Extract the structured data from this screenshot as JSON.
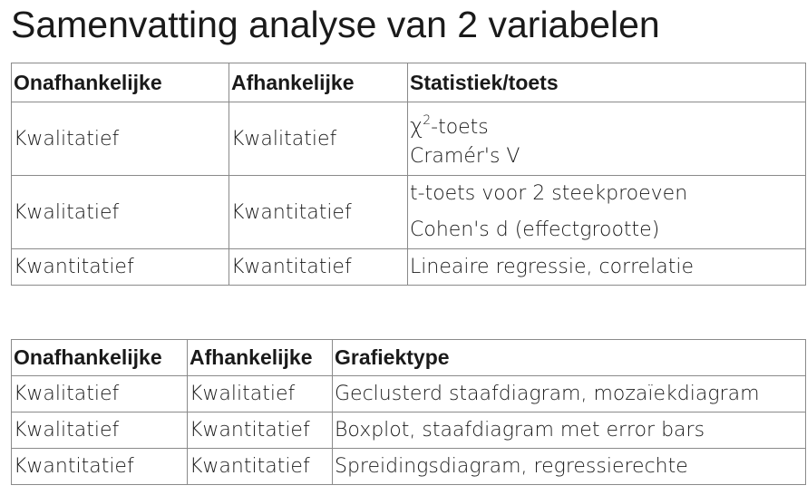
{
  "page_title": "Samenvatting analyse van 2 variabelen",
  "table1": {
    "headers": [
      "Onafhankelijke",
      "Afhankelijke",
      "Statistiek/toets"
    ],
    "rows": [
      {
        "onafhankelijke": "Kwalitatief",
        "afhankelijke": "Kwalitatief",
        "statistiek": {
          "chi_symbol": "χ",
          "chi_superscript": "2",
          "chi_suffix": "-toets",
          "line2": "Cramér's V"
        }
      },
      {
        "onafhankelijke": "Kwalitatief",
        "afhankelijke": "Kwantitatief",
        "statistiek": {
          "line1": "t-toets voor 2 steekproeven",
          "line2": "Cohen's d (effectgrootte)"
        }
      },
      {
        "onafhankelijke": "Kwantitatief",
        "afhankelijke": "Kwantitatief",
        "statistiek": {
          "line1": "Lineaire regressie, correlatie"
        }
      }
    ]
  },
  "table2": {
    "headers": [
      "Onafhankelijke",
      "Afhankelijke",
      "Grafiektype"
    ],
    "rows": [
      {
        "onafhankelijke": "Kwalitatief",
        "afhankelijke": "Kwalitatief",
        "grafiektype": "Geclusterd staafdiagram, mozaïekdiagram"
      },
      {
        "onafhankelijke": "Kwalitatief",
        "afhankelijke": "Kwantitatief",
        "grafiektype": "Boxplot, staafdiagram met error bars"
      },
      {
        "onafhankelijke": "Kwantitatief",
        "afhankelijke": "Kwantitatief",
        "grafiektype": "Spreidingsdiagram, regressierechte"
      }
    ]
  }
}
